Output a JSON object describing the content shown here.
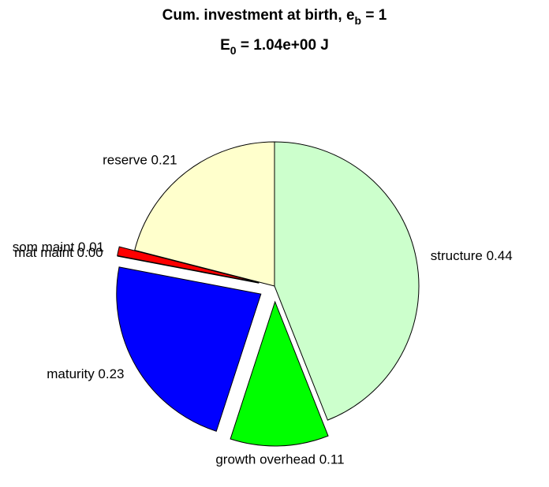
{
  "chart_data": {
    "type": "pie",
    "title": {
      "line1": {
        "text": "Cum. investment at birth, e",
        "sub": "b",
        "end": " = 1"
      },
      "line2": {
        "text": "E",
        "sub": "0",
        "end": " = 1.04e+00 J"
      }
    },
    "labels": [
      "structure 0.44",
      "growth overhead 0.11",
      "maturity 0.23",
      "mat maint 0.00",
      "som maint 0.01",
      "reserve 0.21"
    ],
    "values": [
      0.44,
      0.11,
      0.23,
      0.0,
      0.01,
      0.21
    ],
    "colors": [
      "#ccffcc",
      "#00ff00",
      "#0000ff",
      "#8000ff",
      "#ff0000",
      "#ffffcc"
    ],
    "explode": [
      false,
      true,
      true,
      true,
      true,
      false
    ]
  }
}
